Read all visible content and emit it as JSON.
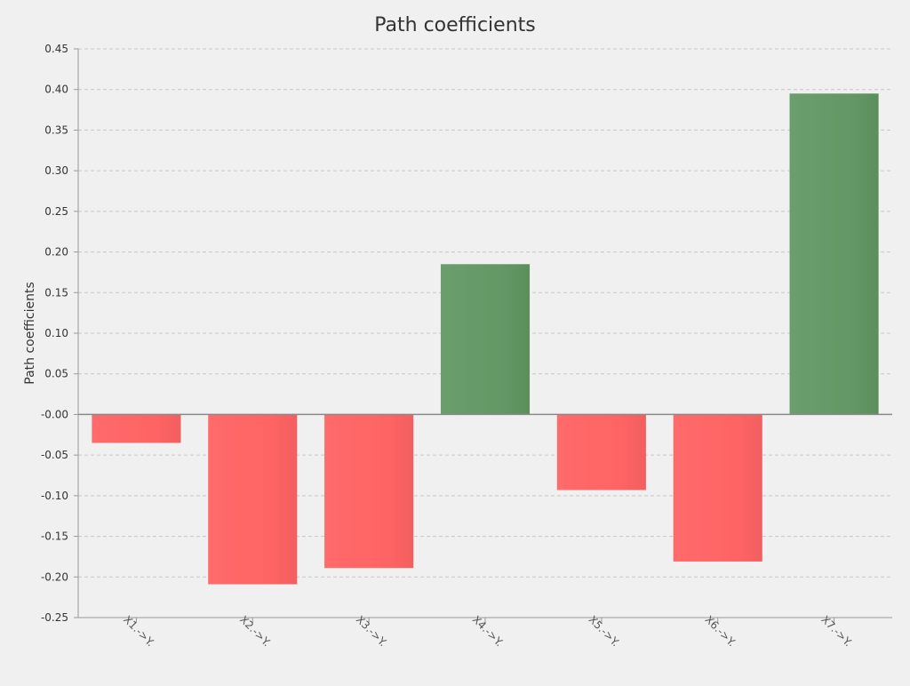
{
  "chart_data": {
    "type": "bar",
    "title": "Path coefficients",
    "ylabel": "Path coefficients",
    "xlabel": "",
    "categories": [
      "X1.->Y.",
      "X2.->Y.",
      "X3.->Y.",
      "X4.->Y.",
      "X5.->Y.",
      "X6.->Y.",
      "X7.->Y."
    ],
    "values": [
      -0.035,
      -0.209,
      -0.189,
      0.185,
      -0.093,
      -0.181,
      0.395
    ],
    "ylim": [
      -0.25,
      0.45
    ],
    "yticks": [
      0.45,
      0.4,
      0.35,
      0.3,
      0.25,
      0.2,
      0.15,
      0.1,
      0.05,
      0.0,
      -0.05,
      -0.1,
      -0.15,
      -0.2,
      -0.25
    ],
    "ytick_labels": [
      "0.45",
      "0.40",
      "0.35",
      "0.30",
      "0.25",
      "0.20",
      "0.15",
      "0.10",
      "0.05",
      "-0.00",
      "-0.05",
      "-0.10",
      "-0.15",
      "-0.20",
      "-0.25"
    ],
    "grid": true,
    "legend": "none",
    "colors": {
      "negative": "#ff6666",
      "positive": "#66996a",
      "background": "#f0f0f0"
    }
  }
}
